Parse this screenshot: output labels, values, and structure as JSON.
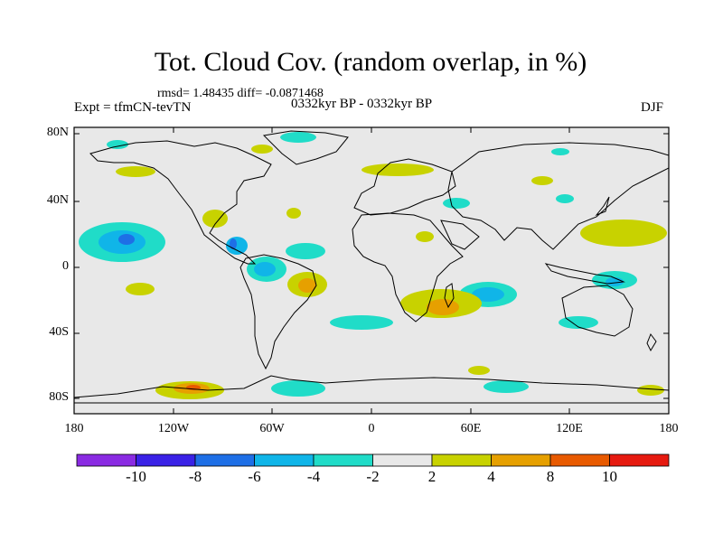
{
  "title": "Tot. Cloud Cov. (random overlap, in %)",
  "stats": "rmsd= 1.48435 diff= -0.0871468",
  "experiment": "Expt = tfmCN-tevTN",
  "period": "0332kyr BP - 0332kyr BP",
  "season": "DJF",
  "y_axis_labels": [
    "80N",
    "40N",
    "0",
    "40S",
    "80S"
  ],
  "x_axis_labels": [
    "180",
    "120W",
    "60W",
    "0",
    "60E",
    "120E",
    "180"
  ],
  "colorbar": {
    "labels": [
      "-10",
      "-8",
      "-6",
      "-4",
      "-2",
      "2",
      "4",
      "8",
      "10"
    ],
    "colors": [
      "#8a2be2",
      "#3a22e6",
      "#1e6fe6",
      "#10b5e8",
      "#20dcc8",
      "#e8e8e8",
      "#c8d200",
      "#e6a000",
      "#e85a00",
      "#e61a10"
    ]
  },
  "map_colors": {
    "background": "#e8e8e8",
    "coast": "#000000"
  }
}
